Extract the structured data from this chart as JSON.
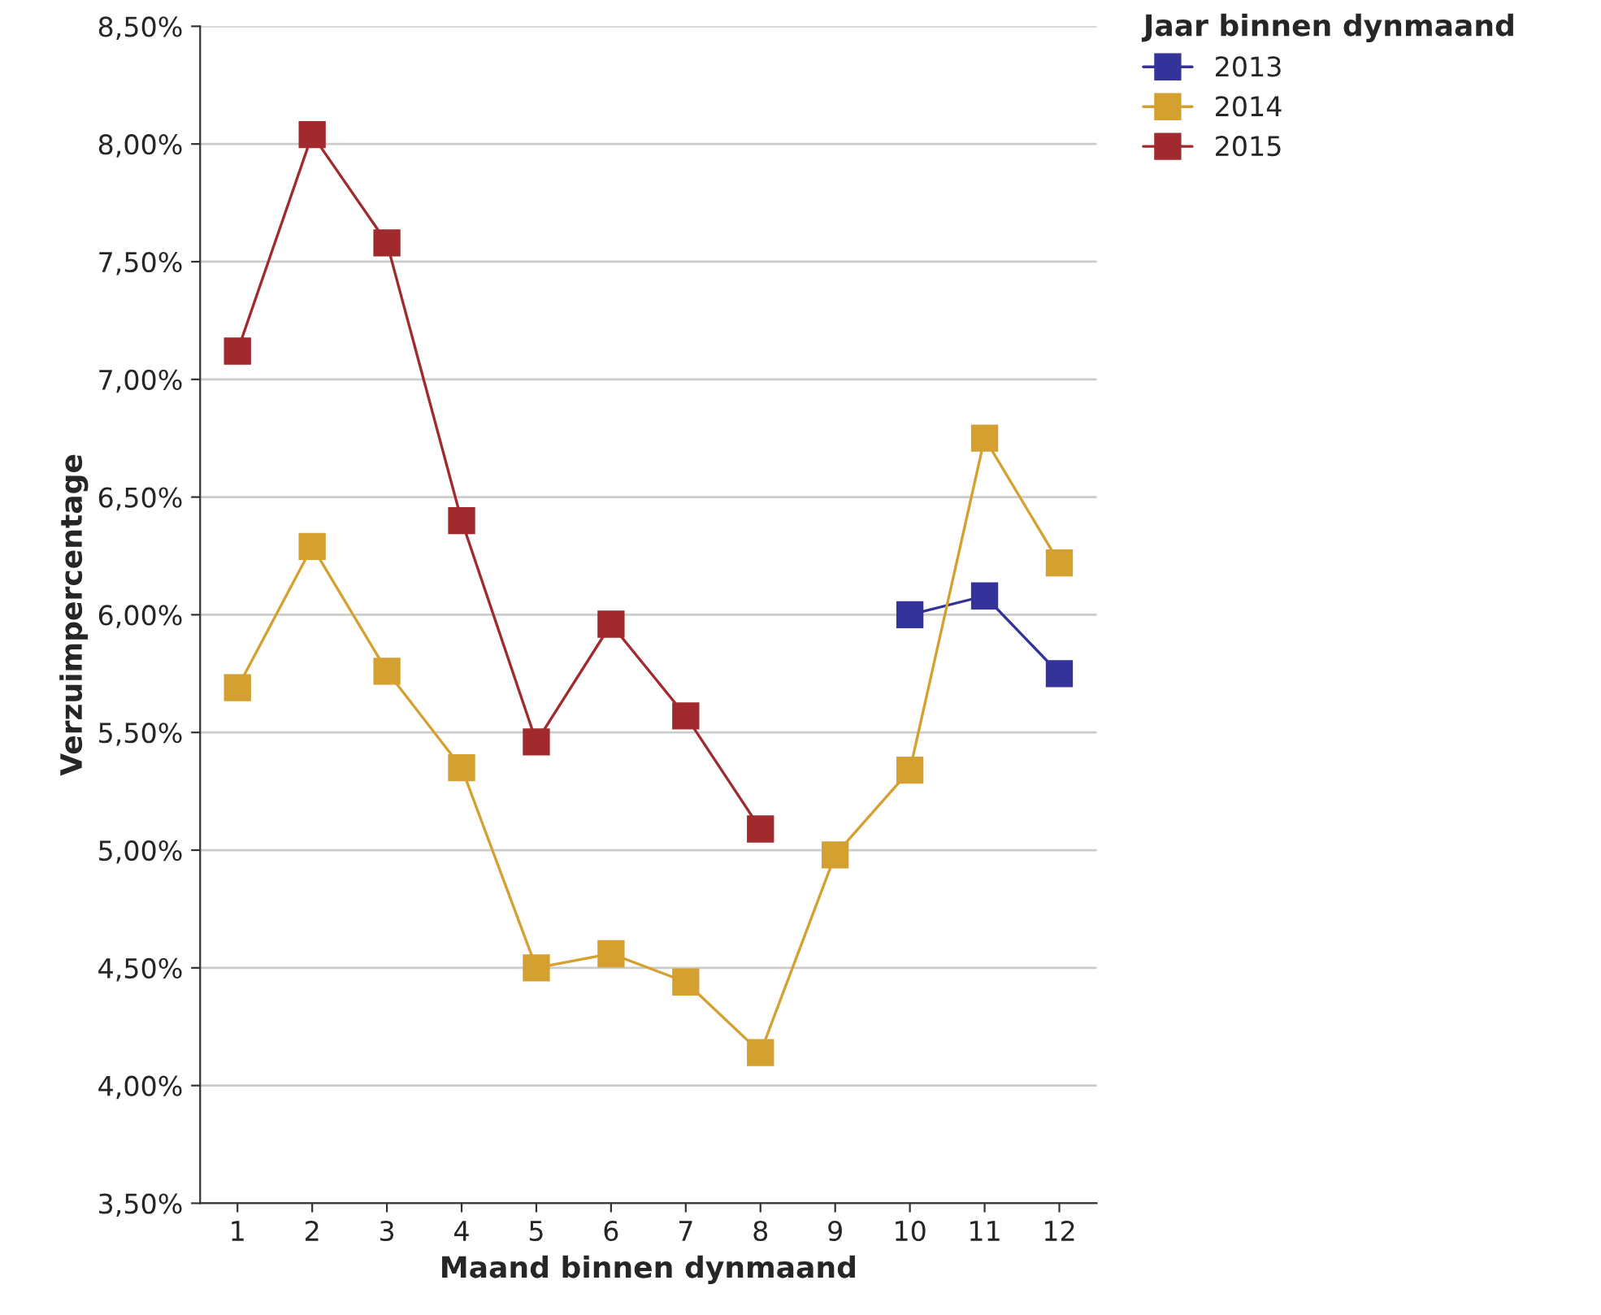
{
  "chart_data": {
    "type": "line",
    "xlabel": "Maand binnen dynmaand",
    "ylabel": "Verzuimpercentage",
    "legend_title": "Jaar binnen dynmaand",
    "categories": [
      "1",
      "2",
      "3",
      "4",
      "5",
      "6",
      "7",
      "8",
      "9",
      "10",
      "11",
      "12"
    ],
    "series": [
      {
        "name": "2013",
        "color": "#33339a",
        "values": [
          null,
          null,
          null,
          null,
          null,
          null,
          null,
          null,
          null,
          6.0,
          6.08,
          5.75
        ]
      },
      {
        "name": "2014",
        "color": "#d4a030",
        "values": [
          5.69,
          6.29,
          5.76,
          5.35,
          4.5,
          4.56,
          4.44,
          4.14,
          4.98,
          5.34,
          6.75,
          6.22
        ]
      },
      {
        "name": "2015",
        "color": "#a02a2e",
        "values": [
          7.12,
          8.04,
          7.58,
          6.4,
          5.46,
          5.96,
          5.57,
          5.09,
          null,
          null,
          null,
          null
        ]
      }
    ],
    "ylim": [
      3.5,
      8.5
    ],
    "yticks": [
      {
        "value": 3.5,
        "label": "3,50%"
      },
      {
        "value": 4.0,
        "label": "4,00%"
      },
      {
        "value": 4.5,
        "label": "4,50%"
      },
      {
        "value": 5.0,
        "label": "5,00%"
      },
      {
        "value": 5.5,
        "label": "5,50%"
      },
      {
        "value": 6.0,
        "label": "6,00%"
      },
      {
        "value": 6.5,
        "label": "6,50%"
      },
      {
        "value": 7.0,
        "label": "7,00%"
      },
      {
        "value": 7.5,
        "label": "7,50%"
      },
      {
        "value": 8.0,
        "label": "8,00%"
      },
      {
        "value": 8.5,
        "label": "8,50%"
      }
    ],
    "grid": "y",
    "legend": "top right",
    "marker": "square",
    "line_style": "solid"
  }
}
